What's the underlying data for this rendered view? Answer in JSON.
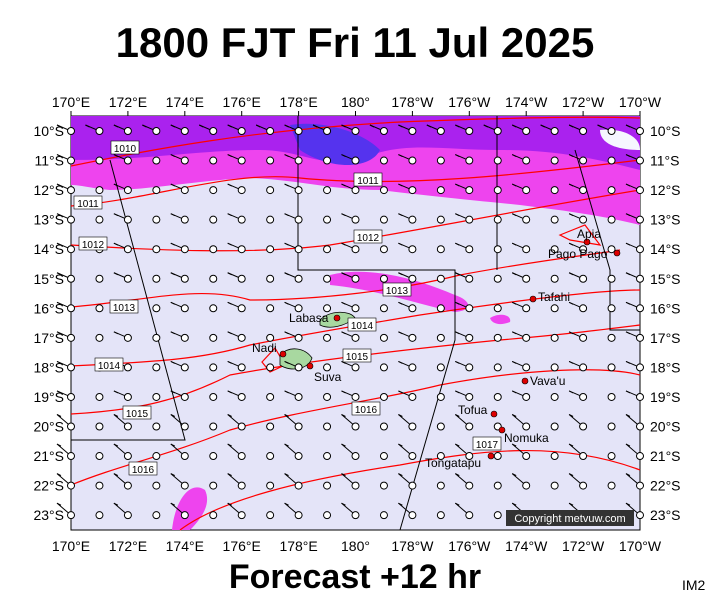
{
  "header": {
    "title": "1800 FJT Fri 11 Jul 2025"
  },
  "map": {
    "lon_labels": [
      "170°E",
      "172°E",
      "174°E",
      "176°E",
      "178°E",
      "180°",
      "178°W",
      "176°W",
      "174°W",
      "172°W",
      "170°W"
    ],
    "lat_labels": [
      "10°S",
      "11°S",
      "12°S",
      "13°S",
      "14°S",
      "15°S",
      "16°S",
      "17°S",
      "18°S",
      "19°S",
      "20°S",
      "21°S",
      "22°S",
      "23°S"
    ],
    "isobar_labels": [
      "1010",
      "1011",
      "1011",
      "1012",
      "1012",
      "1013",
      "1013",
      "1014",
      "1014",
      "1015",
      "1015",
      "1016",
      "1016",
      "1017"
    ],
    "places": [
      "Apia",
      "Pago Pago",
      "Tafahi",
      "Labasa",
      "Nadi",
      "Suva",
      "Vava'u",
      "Tofua",
      "Nomuka",
      "Tongatapu"
    ],
    "copyright": "Copyright metvuw.com"
  },
  "footer": {
    "subtitle": "Forecast +12 hr",
    "code": "IM2"
  }
}
